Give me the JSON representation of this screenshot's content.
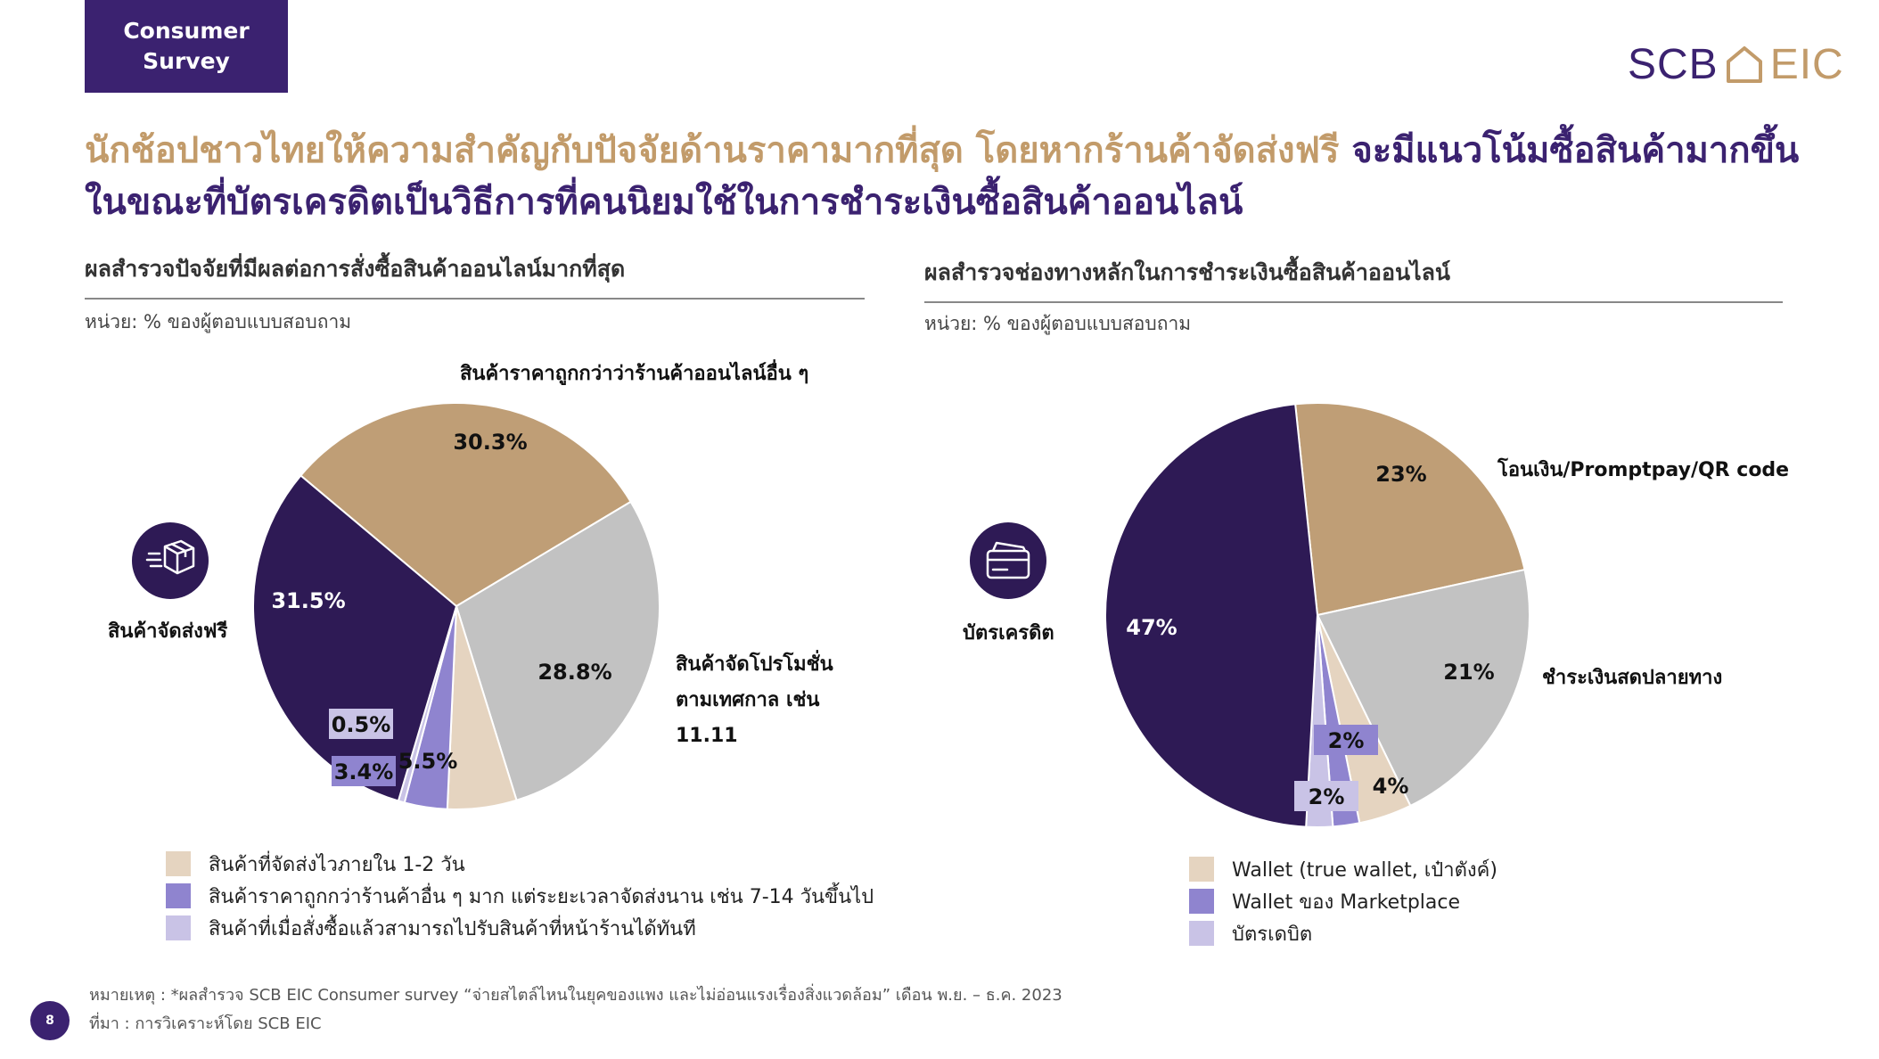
{
  "badge": {
    "line1": "Consumer",
    "line2": "Survey"
  },
  "logo": {
    "left": "SCB",
    "right": "EIC"
  },
  "headline": {
    "tan1": "นักช้อปชาวไทยให้ความสำคัญกับปัจจัยด้านราคามากที่สุด โดยหากร้านค้าจัดส่งฟรี",
    "purple1": " จะมีแนวโน้มซื้อสินค้ามากขึ้น",
    "purple2": "ในขณะที่บัตรเครดิตเป็นวิธีการที่คนนิยมใช้ในการชำระเงินซื้อสินค้าออนไลน์"
  },
  "left": {
    "title": "ผลสำรวจปัจจัยที่มีผลต่อการสั่งซื้อสินค้าออนไลน์มากที่สุด",
    "unit": "หน่วย: % ของผู้ตอบแบบสอบถาม",
    "icon_name": "delivery-box-icon",
    "icon_label": "สินค้าจัดส่งฟรี",
    "callouts": {
      "top": "สินค้าราคาถูกกว่าว่าร้านค้าออนไลน์อื่น ๆ",
      "right1": "สินค้าจัดโปรโมชั่น",
      "right2": "ตามเทศกาล เช่น",
      "right3": "11.11"
    }
  },
  "right": {
    "title": "ผลสำรวจช่องทางหลักในการชำระเงินซื้อสินค้าออนไลน์",
    "unit": "หน่วย: % ของผู้ตอบแบบสอบถาม",
    "icon_name": "credit-card-icon",
    "icon_label": "บัตรเครดิต",
    "callouts": {
      "transfer": "โอนเงิน/Promptpay/QR code",
      "cod": "ชำระเงินสดปลายทาง"
    }
  },
  "chart_data": [
    {
      "type": "pie",
      "title": "ผลสำรวจปัจจัยที่มีผลต่อการสั่งซื้อสินค้าออนไลน์มากที่สุด",
      "unit": "หน่วย: % ของผู้ตอบแบบสอบถาม",
      "slices": [
        {
          "label": "สินค้าราคาถูกกว่าว่าร้านค้าออนไลน์อื่น ๆ",
          "value": 30.3,
          "display": "30.3%",
          "color": "#bf9e76"
        },
        {
          "label": "สินค้าจัดโปรโมชั่น ตามเทศกาล เช่น 11.11",
          "value": 28.8,
          "display": "28.8%",
          "color": "#c2c2c2"
        },
        {
          "label": "สินค้าที่จัดส่งไวภายใน 1-2 วัน",
          "value": 5.5,
          "display": "5.5%",
          "color": "#e5d4c0"
        },
        {
          "label": "สินค้าราคาถูกกว่าร้านค้าอื่น ๆ มาก แต่ระยะเวลาจัดส่งนาน เช่น 7-14 วันขึ้นไป",
          "value": 3.4,
          "display": "3.4%",
          "color": "#8f84cf"
        },
        {
          "label": "สินค้าที่เมื่อสั่งซื้อแล้วสามารถไปรับสินค้าที่หน้าร้านได้ทันที",
          "value": 0.5,
          "display": "0.5%",
          "color": "#c9c3e6"
        },
        {
          "label": "สินค้าจัดส่งฟรี",
          "value": 31.5,
          "display": "31.5%",
          "color": "#2e1a55"
        }
      ],
      "legend": [
        {
          "label": "สินค้าที่จัดส่งไวภายใน 1-2 วัน",
          "color": "#e5d4c0"
        },
        {
          "label": "สินค้าราคาถูกกว่าร้านค้าอื่น ๆ มาก แต่ระยะเวลาจัดส่งนาน เช่น 7-14 วันขึ้นไป",
          "color": "#8f84cf"
        },
        {
          "label": "สินค้าที่เมื่อสั่งซื้อแล้วสามารถไปรับสินค้าที่หน้าร้านได้ทันที",
          "color": "#c9c3e6"
        }
      ]
    },
    {
      "type": "pie",
      "title": "ผลสำรวจช่องทางหลักในการชำระเงินซื้อสินค้าออนไลน์",
      "unit": "หน่วย: % ของผู้ตอบแบบสอบถาม",
      "slices": [
        {
          "label": "โอนเงิน/Promptpay/QR code",
          "value": 23,
          "display": "23%",
          "color": "#bf9e76"
        },
        {
          "label": "ชำระเงินสดปลายทาง",
          "value": 21,
          "display": "21%",
          "color": "#c2c2c2"
        },
        {
          "label": "Wallet (true wallet, เป๋าตังค์)",
          "value": 4,
          "display": "4%",
          "color": "#e5d4c0"
        },
        {
          "label": "Wallet ของ Marketplace",
          "value": 2,
          "display": "2%",
          "color": "#8f84cf"
        },
        {
          "label": "บัตรเดบิต",
          "value": 2,
          "display": "2%",
          "color": "#c9c3e6"
        },
        {
          "label": "บัตรเครดิต",
          "value": 47,
          "display": "47%",
          "color": "#2e1a55"
        }
      ],
      "legend": [
        {
          "label": "Wallet (true wallet, เป๋าตังค์)",
          "color": "#e5d4c0"
        },
        {
          "label": "Wallet ของ Marketplace",
          "color": "#8f84cf"
        },
        {
          "label": "บัตรเดบิต",
          "color": "#c9c3e6"
        }
      ]
    }
  ],
  "footer": {
    "note": "หมายเหตุ : *ผลสำรวจ SCB EIC Consumer survey “จ่ายสไตล์ไหนในยุคของแพง และไม่อ่อนแรงเรื่องสิ่งแวดล้อม” เดือน พ.ย. – ธ.ค. 2023",
    "source": "ที่มา : การวิเคราะห์โดย SCB EIC",
    "page": "8"
  }
}
